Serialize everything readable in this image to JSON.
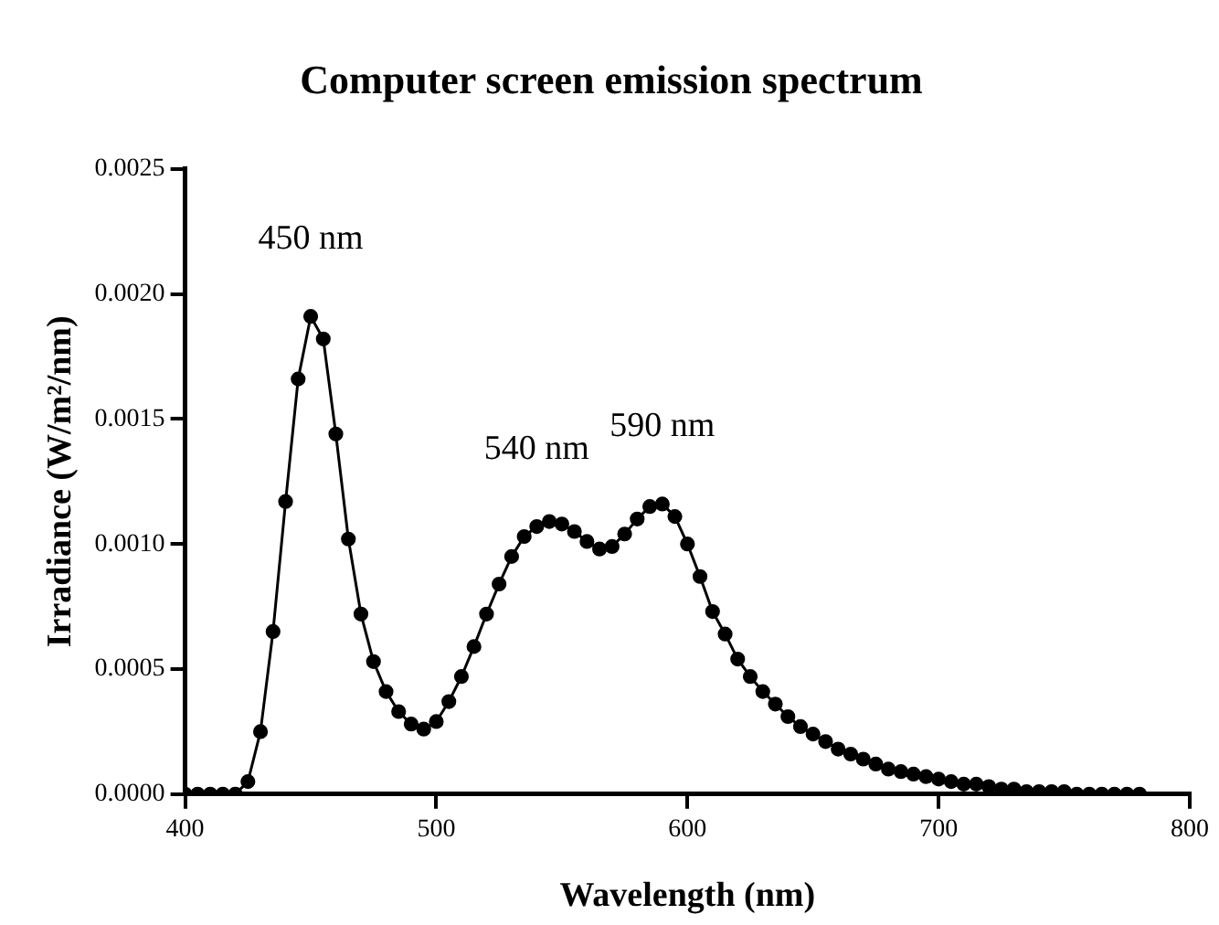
{
  "chart_data": {
    "type": "line",
    "title": "Computer screen emission spectrum",
    "xlabel": "Wavelength (nm)",
    "ylabel": "Irradiance (W/m²/nm)",
    "x": [
      400,
      405,
      410,
      415,
      420,
      425,
      430,
      435,
      440,
      445,
      450,
      455,
      460,
      465,
      470,
      475,
      480,
      485,
      490,
      495,
      500,
      505,
      510,
      515,
      520,
      525,
      530,
      535,
      540,
      545,
      550,
      555,
      560,
      565,
      570,
      575,
      580,
      585,
      590,
      595,
      600,
      605,
      610,
      615,
      620,
      625,
      630,
      635,
      640,
      645,
      650,
      655,
      660,
      665,
      670,
      675,
      680,
      685,
      690,
      695,
      700,
      705,
      710,
      715,
      720,
      725,
      730,
      735,
      740,
      745,
      750,
      755,
      760,
      765,
      770,
      775,
      780
    ],
    "series": [
      {
        "color": "#000000",
        "values": [
          0,
          0,
          0,
          0,
          0,
          5e-05,
          0.00025,
          0.00065,
          0.00117,
          0.00166,
          0.00191,
          0.00182,
          0.00144,
          0.00102,
          0.00072,
          0.00053,
          0.00041,
          0.00033,
          0.00028,
          0.00026,
          0.00029,
          0.00037,
          0.00047,
          0.00059,
          0.00072,
          0.00084,
          0.00095,
          0.00103,
          0.00107,
          0.00109,
          0.00108,
          0.00105,
          0.00101,
          0.00098,
          0.00099,
          0.00104,
          0.0011,
          0.00115,
          0.00116,
          0.00111,
          0.001,
          0.00087,
          0.00073,
          0.00064,
          0.00054,
          0.00047,
          0.00041,
          0.00036,
          0.00031,
          0.00027,
          0.00024,
          0.00021,
          0.00018,
          0.00016,
          0.00014,
          0.00012,
          0.0001,
          9e-05,
          8e-05,
          7e-05,
          6e-05,
          5e-05,
          4e-05,
          4e-05,
          3e-05,
          2e-05,
          2e-05,
          1e-05,
          1e-05,
          1e-05,
          1e-05,
          0,
          0,
          0,
          0,
          0,
          0
        ]
      }
    ],
    "xlim": [
      400,
      800
    ],
    "xticks": [
      400,
      500,
      600,
      700,
      800
    ],
    "ylim": [
      0,
      0.0025
    ],
    "yticks": [
      {
        "value": 0,
        "label": "0.0000"
      },
      {
        "value": 0.0005,
        "label": "0.0005"
      },
      {
        "value": 0.001,
        "label": "0.0010"
      },
      {
        "value": 0.0015,
        "label": "0.0015"
      },
      {
        "value": 0.002,
        "label": "0.0020"
      },
      {
        "value": 0.0025,
        "label": "0.0025"
      }
    ],
    "annotations": [
      {
        "text": "450 nm",
        "x": 450,
        "y": 0.00191
      },
      {
        "text": "540 nm",
        "x": 540,
        "y": 0.00107
      },
      {
        "text": "590 nm",
        "x": 590,
        "y": 0.00116
      }
    ],
    "grid": false,
    "legend": false,
    "marker": "circle",
    "line_style": "solid"
  }
}
